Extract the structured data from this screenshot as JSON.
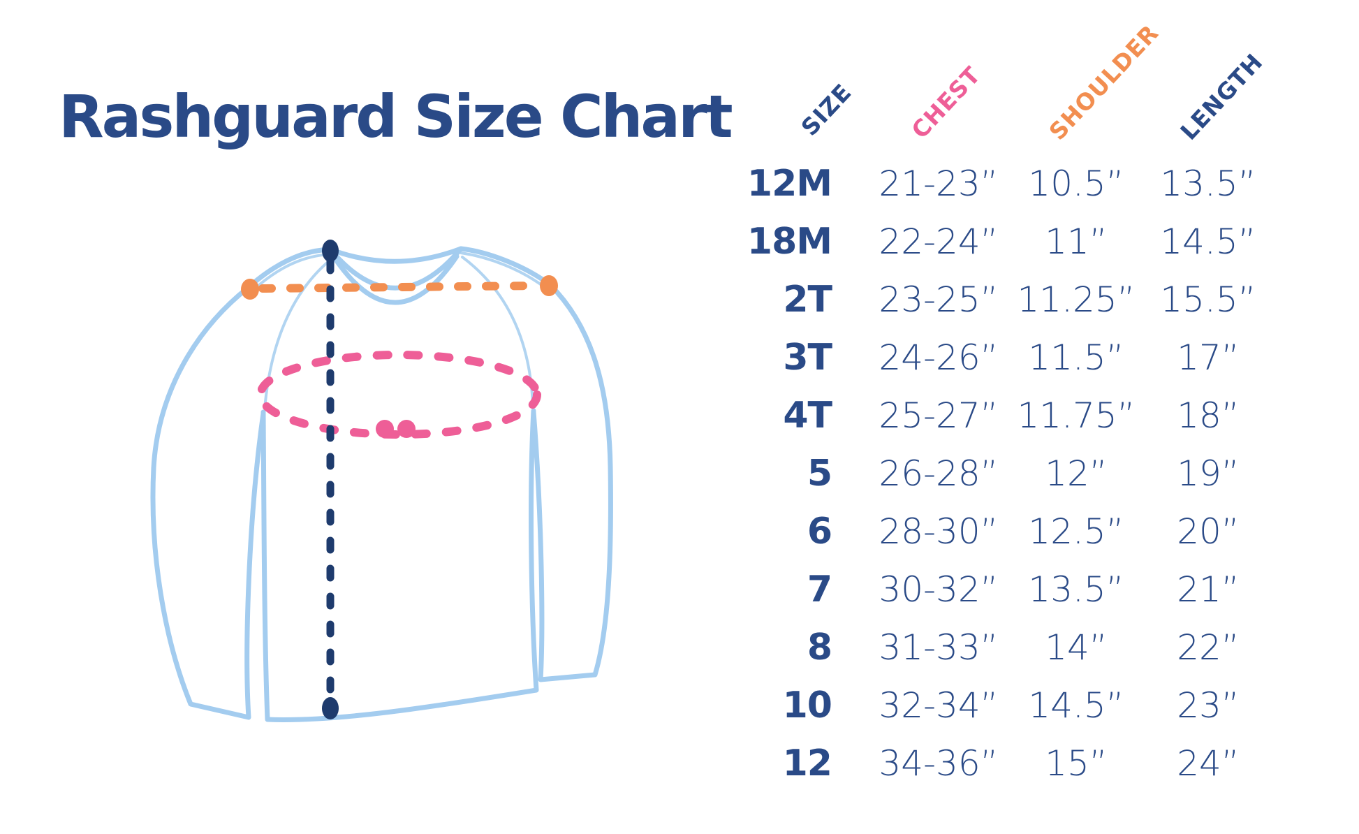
{
  "title": "Rashguard Size Chart",
  "colors": {
    "navy": "#2A4A87",
    "navy_dark": "#1E3B6D",
    "pink": "#EE5E97",
    "orange": "#F28E50",
    "light_blue": "#A3CCEF"
  },
  "chart_data": {
    "type": "table",
    "title": "Rashguard Size Chart",
    "columns": [
      {
        "key": "size",
        "label": "SIZE",
        "color": "#2A4A87"
      },
      {
        "key": "chest",
        "label": "CHEST",
        "color": "#EE5E97"
      },
      {
        "key": "shoulder",
        "label": "SHOULDER",
        "color": "#F28E50"
      },
      {
        "key": "length",
        "label": "LENGTH",
        "color": "#2A4A87"
      }
    ],
    "rows": [
      {
        "size": "12M",
        "chest": "21-23”",
        "shoulder": "10.5”",
        "length": "13.5”"
      },
      {
        "size": "18M",
        "chest": "22-24”",
        "shoulder": "11”",
        "length": "14.5”"
      },
      {
        "size": "2T",
        "chest": "23-25”",
        "shoulder": "11.25”",
        "length": "15.5”"
      },
      {
        "size": "3T",
        "chest": "24-26”",
        "shoulder": "11.5”",
        "length": "17”"
      },
      {
        "size": "4T",
        "chest": "25-27”",
        "shoulder": "11.75”",
        "length": "18”"
      },
      {
        "size": "5",
        "chest": "26-28”",
        "shoulder": "12”",
        "length": "19”"
      },
      {
        "size": "6",
        "chest": "28-30”",
        "shoulder": "12.5”",
        "length": "20”"
      },
      {
        "size": "7",
        "chest": "30-32”",
        "shoulder": "13.5”",
        "length": "21”"
      },
      {
        "size": "8",
        "chest": "31-33”",
        "shoulder": "14”",
        "length": "22”"
      },
      {
        "size": "10",
        "chest": "32-34”",
        "shoulder": "14.5”",
        "length": "23”"
      },
      {
        "size": "12",
        "chest": "34-36”",
        "shoulder": "15”",
        "length": "24”"
      }
    ]
  },
  "diagram": {
    "subject": "long-sleeve rashguard outline",
    "measures": [
      {
        "name": "shoulder",
        "color": "#F28E50",
        "style": "dashed-line-across-shoulders"
      },
      {
        "name": "chest",
        "color": "#EE5E97",
        "style": "dashed-ellipse-around-chest"
      },
      {
        "name": "length",
        "color": "#1E3B6D",
        "style": "dashed-vertical-line-collar-to-hem"
      }
    ]
  }
}
